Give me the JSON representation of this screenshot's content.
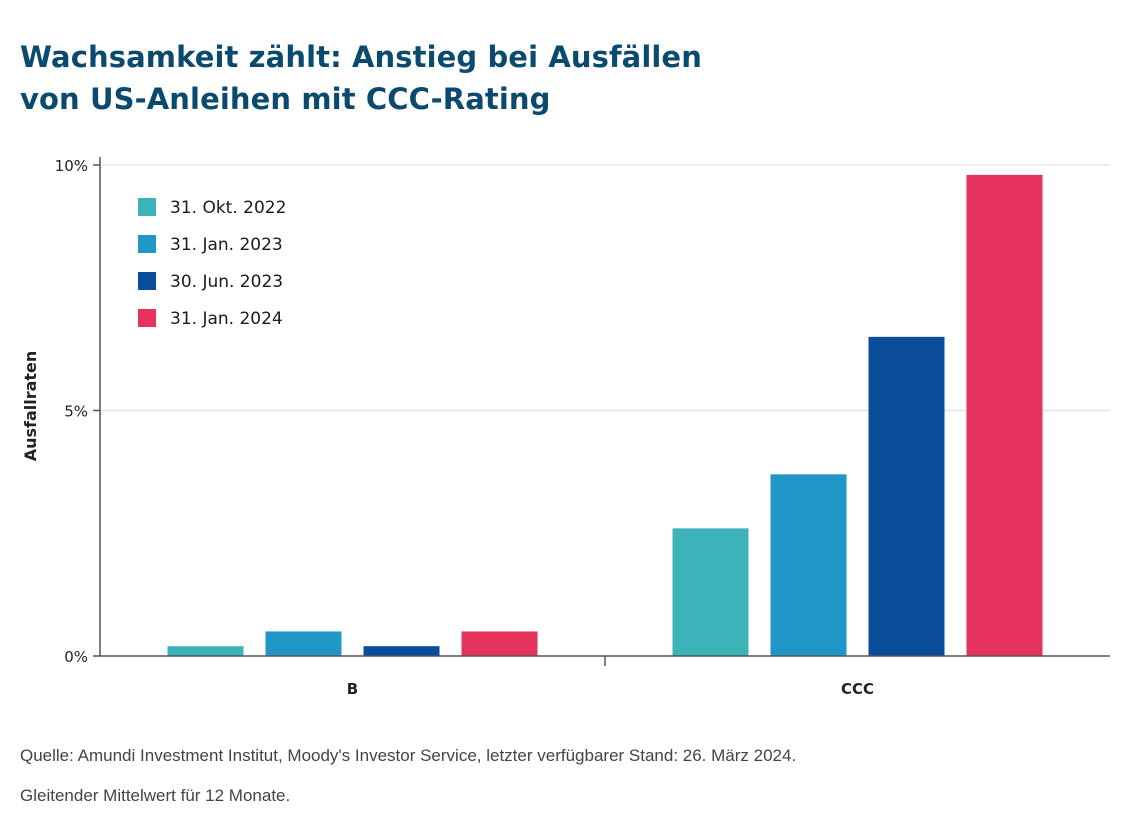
{
  "title_lines": [
    "Wachsamkeit zählt: Anstieg bei Ausfällen",
    "von US-Anleihen mit CCC-Rating"
  ],
  "colors": {
    "title": "#0b4a6f",
    "grid": "#e6e6e6",
    "axis": "#555555",
    "text": "#222222"
  },
  "chart_data": {
    "type": "bar",
    "title": "Wachsamkeit zählt: Anstieg bei Ausfällen von US-Anleihen mit CCC-Rating",
    "xlabel": "",
    "ylabel": "Ausfallraten",
    "categories": [
      "B",
      "CCC"
    ],
    "ylim": [
      0,
      10
    ],
    "yticks": [
      {
        "value": 0,
        "label": "0%"
      },
      {
        "value": 5,
        "label": "5%"
      },
      {
        "value": 10,
        "label": "10%"
      }
    ],
    "grid": true,
    "legend_position": "top-left",
    "series": [
      {
        "name": "31. Okt. 2022",
        "color": "#3bb3b8",
        "values": [
          0.2,
          2.6
        ]
      },
      {
        "name": "31. Jan. 2023",
        "color": "#2196c9",
        "values": [
          0.5,
          3.7
        ]
      },
      {
        "name": "30. Jun. 2023",
        "color": "#0a4d9b",
        "values": [
          0.2,
          6.5
        ]
      },
      {
        "name": "31. Jan. 2024",
        "color": "#e5335d",
        "values": [
          0.5,
          9.8
        ]
      }
    ]
  },
  "source_lines": [
    "Quelle: Amundi Investment Institut, Moody's Investor Service, letzter verfügbarer Stand: 26. März 2024.",
    "Gleitender Mittelwert für 12 Monate."
  ]
}
